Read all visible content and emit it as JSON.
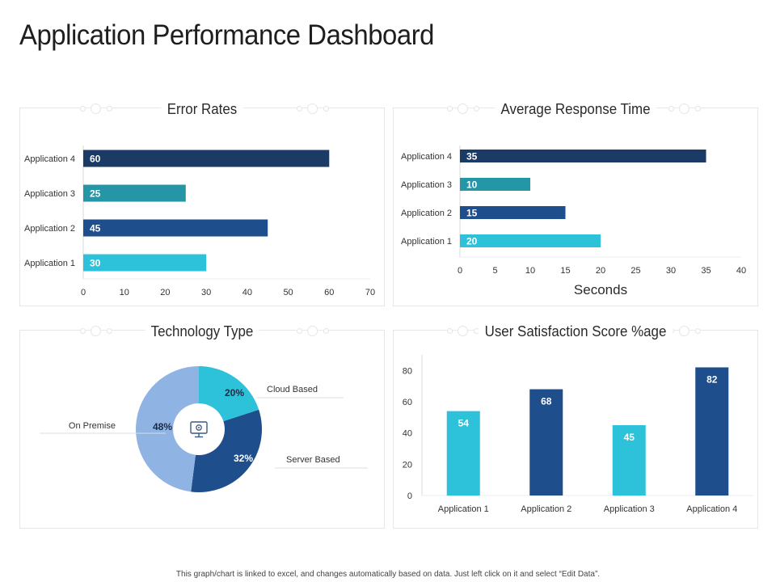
{
  "page": {
    "title": "Application Performance Dashboard"
  },
  "footer": "This graph/chart is linked to excel, and changes automatically based on data. Just left click on it and select “Edit Data”.",
  "colors": {
    "navy": "#1b3a66",
    "blue": "#1f4e8c",
    "teal": "#2596a5",
    "cyan": "#2ec2da",
    "light_blue": "#8fb3e3",
    "grid": "#e3e6ea"
  },
  "icons": {
    "center": "monitor-gear-icon"
  },
  "chart_data": [
    {
      "id": "error-rates",
      "type": "bar",
      "orientation": "horizontal",
      "title": "Error Rates",
      "categories": [
        "Application 4",
        "Application 3",
        "Application 2",
        "Application 1"
      ],
      "values": [
        60,
        25,
        45,
        30
      ],
      "value_labels": [
        "60",
        "25",
        "45",
        "30"
      ],
      "colors": [
        "#1b3a66",
        "#2596a5",
        "#1f4e8c",
        "#2ec2da"
      ],
      "xlim": [
        0,
        70
      ],
      "xticks": [
        "0",
        "10",
        "20",
        "30",
        "40",
        "50",
        "60",
        "70"
      ],
      "xlabel": ""
    },
    {
      "id": "response-time",
      "type": "bar",
      "orientation": "horizontal",
      "title": "Average Response Time",
      "categories": [
        "Application 4",
        "Application 3",
        "Application 2",
        "Application 1"
      ],
      "values": [
        35,
        10,
        15,
        20
      ],
      "value_labels": [
        "35",
        "10",
        "15",
        "20"
      ],
      "colors": [
        "#1b3a66",
        "#2596a5",
        "#1f4e8c",
        "#2ec2da"
      ],
      "xlim": [
        0,
        40
      ],
      "xticks": [
        "0",
        "5",
        "10",
        "15",
        "20",
        "25",
        "30",
        "35",
        "40"
      ],
      "xlabel": "Seconds"
    },
    {
      "id": "technology-type",
      "type": "pie",
      "title": "Technology Type",
      "slices": [
        {
          "label": "Cloud Based",
          "value": 20,
          "value_label": "20%",
          "color": "#2ec2da"
        },
        {
          "label": "Server Based",
          "value": 32,
          "value_label": "32%",
          "color": "#1f4e8c"
        },
        {
          "label": "On Premise",
          "value": 48,
          "value_label": "48%",
          "color": "#8fb3e3"
        }
      ]
    },
    {
      "id": "user-satisfaction",
      "type": "bar",
      "orientation": "vertical",
      "title": "User Satisfaction Score %age",
      "categories": [
        "Application 1",
        "Application 2",
        "Application 3",
        "Application 4"
      ],
      "values": [
        54,
        68,
        45,
        82
      ],
      "value_labels": [
        "54",
        "68",
        "45",
        "82"
      ],
      "colors": [
        "#2ec2da",
        "#1f4e8c",
        "#2ec2da",
        "#1f4e8c"
      ],
      "ylim": [
        0,
        90
      ],
      "yticks": [
        {
          "value": 0,
          "label": "0"
        },
        {
          "value": 20,
          "label": "20"
        },
        {
          "value": 40,
          "label": "40"
        },
        {
          "value": 60,
          "label": "60"
        },
        {
          "value": 80,
          "label": "80"
        }
      ]
    }
  ]
}
